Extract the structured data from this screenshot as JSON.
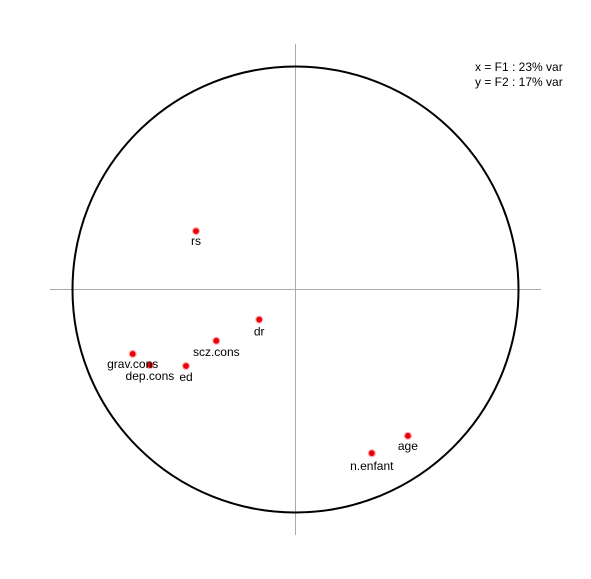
{
  "chart_data": {
    "type": "scatter",
    "title": "",
    "xlabel": "",
    "ylabel": "",
    "xlim": [
      -1,
      1
    ],
    "ylim": [
      -1,
      1
    ],
    "grid": false,
    "annotations": [
      "x = F1 : 23% var",
      "y = F2 : 17% var"
    ],
    "points": [
      {
        "label": "rs",
        "x": -0.446,
        "y": 0.262
      },
      {
        "label": "dr",
        "x": -0.163,
        "y": -0.135
      },
      {
        "label": "scz.cons",
        "x": -0.355,
        "y": -0.23
      },
      {
        "label": "grav.cons",
        "x": -0.73,
        "y": -0.289
      },
      {
        "label": "dep.cons",
        "x": -0.653,
        "y": -0.339
      },
      {
        "label": "ed",
        "x": -0.491,
        "y": -0.343
      },
      {
        "label": "age",
        "x": 0.504,
        "y": -0.656
      },
      {
        "label": "n.enfant",
        "x": 0.342,
        "y": -0.734
      }
    ]
  }
}
